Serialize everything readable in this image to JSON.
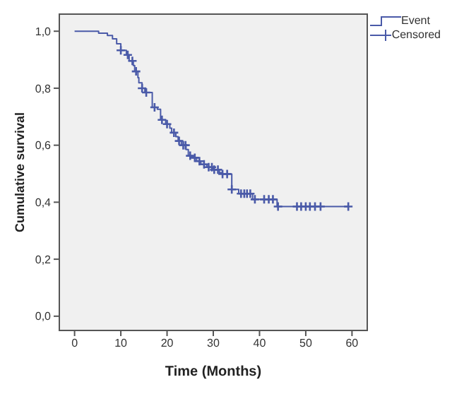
{
  "chart_data": {
    "type": "step",
    "xlabel": "Time (Months)",
    "ylabel": "Cumulative survival",
    "xlim": [
      -3.3,
      63.3
    ],
    "ylim": [
      -0.05,
      1.06
    ],
    "xticks": [
      0,
      10,
      20,
      30,
      40,
      50,
      60
    ],
    "yticks": [
      {
        "value": 0,
        "label": "0,0"
      },
      {
        "value": 0.2,
        "label": "0,2"
      },
      {
        "value": 0.4,
        "label": "0,4"
      },
      {
        "value": 0.6,
        "label": "0,6"
      },
      {
        "value": 0.8,
        "label": "0,8"
      },
      {
        "value": 1,
        "label": "1,0"
      }
    ],
    "legend": "top right",
    "series": [
      {
        "name": "Event",
        "color": "#4a5aa8",
        "marker": "none",
        "x": [
          0,
          5.2,
          7.1,
          8.2,
          9.1,
          10,
          11.2,
          11.8,
          12.7,
          13,
          13.7,
          13.9,
          14.6,
          15.2,
          16.8,
          17.9,
          18.6,
          19.7,
          20.6,
          21,
          21.9,
          22.4,
          23.1,
          24.1,
          24.6,
          25.5,
          26.4,
          27.3,
          28.6,
          30,
          31.3,
          32,
          34,
          35.5,
          38.5,
          43.8,
          59.2
        ],
        "values": [
          1.0,
          0.993,
          0.985,
          0.973,
          0.956,
          0.933,
          0.917,
          0.896,
          0.88,
          0.859,
          0.837,
          0.819,
          0.8,
          0.785,
          0.733,
          0.726,
          0.689,
          0.674,
          0.66,
          0.644,
          0.63,
          0.615,
          0.6,
          0.585,
          0.563,
          0.556,
          0.544,
          0.533,
          0.523,
          0.514,
          0.504,
          0.499,
          0.445,
          0.43,
          0.41,
          0.385,
          0.385
        ]
      },
      {
        "name": "Censored",
        "type": "scatter",
        "color": "#4a5aa8",
        "marker": "cross",
        "x": [
          10,
          11.5,
          12.5,
          13.3,
          14.6,
          15.5,
          17.3,
          18.9,
          20,
          21.5,
          22.6,
          23.5,
          24,
          25,
          26,
          27,
          28,
          29,
          29.7,
          30.2,
          31,
          32,
          33,
          34,
          36,
          36.7,
          37.3,
          38,
          39,
          41,
          42,
          42.9,
          44,
          48.1,
          49,
          50,
          50.9,
          52,
          53.2,
          59.2
        ],
        "values": [
          0.933,
          0.917,
          0.896,
          0.859,
          0.8,
          0.785,
          0.733,
          0.689,
          0.674,
          0.644,
          0.615,
          0.6,
          0.6,
          0.563,
          0.556,
          0.544,
          0.533,
          0.523,
          0.523,
          0.514,
          0.514,
          0.499,
          0.499,
          0.445,
          0.43,
          0.43,
          0.43,
          0.43,
          0.41,
          0.41,
          0.41,
          0.41,
          0.385,
          0.385,
          0.385,
          0.385,
          0.385,
          0.385,
          0.385,
          0.385
        ]
      }
    ]
  }
}
